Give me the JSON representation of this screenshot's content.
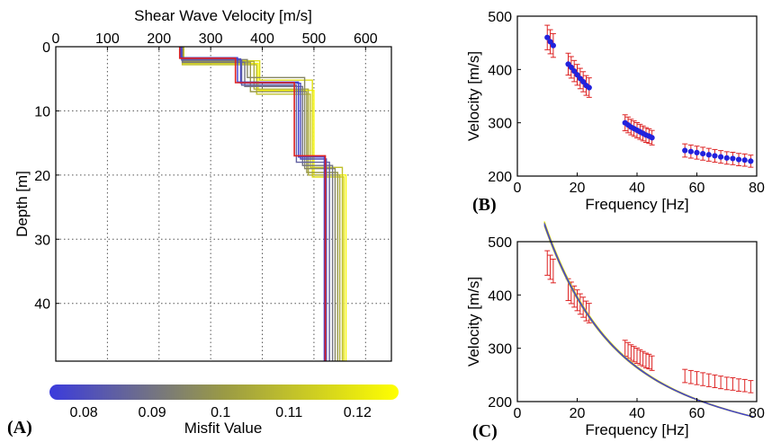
{
  "colors": {
    "cmap_low": "#3b3bdc",
    "cmap_mid": "#9a9a45",
    "cmap_high": "#ffff00",
    "best_profile": "#dd2222",
    "observed_points": "#2222dd",
    "error_bars": "#dd2222"
  },
  "chart_data": [
    {
      "id": "A",
      "panel_label": "(A)",
      "type": "line",
      "title": "Shear Wave Velocity [m/s]",
      "xlabel": "Shear Wave Velocity [m/s]",
      "ylabel": "Depth [m]",
      "xlim": [
        0,
        650
      ],
      "ylim": [
        0,
        49
      ],
      "y_inverted": true,
      "x_axis_position": "top",
      "grid": true,
      "xticks": [
        "0",
        "100",
        "200",
        "300",
        "400",
        "500",
        "600"
      ],
      "yticks": [
        "0",
        "10",
        "20",
        "30",
        "40"
      ],
      "series": [
        {
          "misfit": 0.076,
          "steps": [
            [
              0,
              242
            ],
            [
              1.7,
              352
            ],
            [
              5.5,
              470
            ],
            [
              17.2,
              520
            ],
            [
              49,
              520
            ]
          ]
        },
        {
          "misfit": 0.08,
          "steps": [
            [
              0,
              243
            ],
            [
              1.9,
              358
            ],
            [
              5.7,
              474
            ],
            [
              17.5,
              524
            ],
            [
              49,
              524
            ]
          ]
        },
        {
          "misfit": 0.085,
          "steps": [
            [
              0,
              244
            ],
            [
              2.1,
              360
            ],
            [
              6.0,
              466
            ],
            [
              18.0,
              530
            ],
            [
              49,
              530
            ]
          ]
        },
        {
          "misfit": 0.09,
          "steps": [
            [
              0,
              245
            ],
            [
              2.4,
              366
            ],
            [
              6.2,
              478
            ],
            [
              18.5,
              536
            ],
            [
              49,
              536
            ]
          ]
        },
        {
          "misfit": 0.095,
          "steps": [
            [
              0,
              244
            ],
            [
              2.0,
              371
            ],
            [
              4.8,
              482
            ],
            [
              19.0,
              541
            ],
            [
              49,
              541
            ]
          ]
        },
        {
          "misfit": 0.1,
          "steps": [
            [
              0,
              246
            ],
            [
              2.5,
              377
            ],
            [
              7.0,
              486
            ],
            [
              19.6,
              546
            ],
            [
              49,
              546
            ]
          ]
        },
        {
          "misfit": 0.105,
          "steps": [
            [
              0,
              247
            ],
            [
              2.3,
              384
            ],
            [
              6.6,
              489
            ],
            [
              20.0,
              550
            ],
            [
              49,
              550
            ]
          ]
        },
        {
          "misfit": 0.11,
          "steps": [
            [
              0,
              245
            ],
            [
              2.8,
              389
            ],
            [
              7.4,
              493
            ],
            [
              18.8,
              555
            ],
            [
              49,
              555
            ]
          ]
        },
        {
          "misfit": 0.118,
          "steps": [
            [
              0,
              248
            ],
            [
              2.2,
              395
            ],
            [
              5.2,
              497
            ],
            [
              20.3,
              558
            ],
            [
              49,
              558
            ]
          ]
        },
        {
          "misfit": 0.124,
          "steps": [
            [
              0,
              246
            ],
            [
              2.6,
              392
            ],
            [
              6.8,
              500
            ],
            [
              20.0,
              562
            ],
            [
              49,
              562
            ]
          ]
        }
      ],
      "best": {
        "misfit": 0.076,
        "steps": [
          [
            0,
            240
          ],
          [
            1.8,
            348
          ],
          [
            5.6,
            462
          ],
          [
            17.0,
            522
          ],
          [
            49,
            522
          ]
        ]
      }
    },
    {
      "id": "B",
      "panel_label": "(B)",
      "type": "scatter",
      "xlabel": "Frequency [Hz]",
      "ylabel": "Velocity [m/s]",
      "xlim": [
        0,
        80
      ],
      "ylim": [
        200,
        500
      ],
      "xticks": [
        "0",
        "20",
        "40",
        "60",
        "80"
      ],
      "yticks": [
        "200",
        "300",
        "400",
        "500"
      ],
      "grid": false,
      "observed": [
        [
          10,
          460
        ],
        [
          11,
          452
        ],
        [
          12,
          445
        ],
        [
          17,
          410
        ],
        [
          18,
          404
        ],
        [
          19,
          397
        ],
        [
          20,
          390
        ],
        [
          21,
          383
        ],
        [
          22,
          377
        ],
        [
          23,
          370
        ],
        [
          24,
          366
        ],
        [
          36,
          300
        ],
        [
          37,
          296
        ],
        [
          38,
          292
        ],
        [
          39,
          289
        ],
        [
          40,
          286
        ],
        [
          41,
          283
        ],
        [
          42,
          280
        ],
        [
          43,
          277
        ],
        [
          44,
          275
        ],
        [
          45,
          272
        ],
        [
          56,
          248
        ],
        [
          58,
          246
        ],
        [
          60,
          244
        ],
        [
          62,
          242
        ],
        [
          64,
          240
        ],
        [
          66,
          238
        ],
        [
          68,
          236
        ],
        [
          70,
          234
        ],
        [
          72,
          233
        ],
        [
          74,
          231
        ],
        [
          76,
          230
        ],
        [
          78,
          228
        ]
      ],
      "error_pct": 0.05,
      "model_curves": []
    },
    {
      "id": "C",
      "panel_label": "(C)",
      "type": "scatter",
      "xlabel": "Frequency [Hz]",
      "ylabel": "Velocity [m/s]",
      "xlim": [
        0,
        80
      ],
      "ylim": [
        200,
        500
      ],
      "xticks": [
        "0",
        "20",
        "40",
        "60",
        "80"
      ],
      "yticks": [
        "200",
        "300",
        "400",
        "500"
      ],
      "grid": false,
      "observed": [
        [
          10,
          460
        ],
        [
          11,
          452
        ],
        [
          12,
          445
        ],
        [
          17,
          410
        ],
        [
          18,
          404
        ],
        [
          19,
          397
        ],
        [
          20,
          390
        ],
        [
          21,
          383
        ],
        [
          22,
          377
        ],
        [
          23,
          370
        ],
        [
          24,
          366
        ],
        [
          36,
          300
        ],
        [
          37,
          296
        ],
        [
          38,
          292
        ],
        [
          39,
          289
        ],
        [
          40,
          286
        ],
        [
          41,
          283
        ],
        [
          42,
          280
        ],
        [
          43,
          277
        ],
        [
          44,
          275
        ],
        [
          45,
          272
        ],
        [
          56,
          248
        ],
        [
          58,
          246
        ],
        [
          60,
          244
        ],
        [
          62,
          242
        ],
        [
          64,
          240
        ],
        [
          66,
          238
        ],
        [
          68,
          236
        ],
        [
          70,
          234
        ],
        [
          72,
          233
        ],
        [
          74,
          231
        ],
        [
          76,
          230
        ],
        [
          78,
          228
        ]
      ],
      "error_pct": 0.05,
      "model_curves": [
        {
          "misfit": 0.076,
          "offset": 0
        },
        {
          "misfit": 0.095,
          "offset": 3
        },
        {
          "misfit": 0.11,
          "offset": -3
        },
        {
          "misfit": 0.124,
          "offset": 5
        }
      ]
    },
    {
      "id": "colorbar",
      "type": "heatmap",
      "xlabel": "Misfit Value",
      "range": [
        0.075,
        0.126
      ],
      "ticks": [
        "0.08",
        "0.09",
        "0.1",
        "0.11",
        "0.12"
      ],
      "tick_values": [
        0.08,
        0.09,
        0.1,
        0.11,
        0.12
      ],
      "orientation": "horizontal"
    }
  ]
}
